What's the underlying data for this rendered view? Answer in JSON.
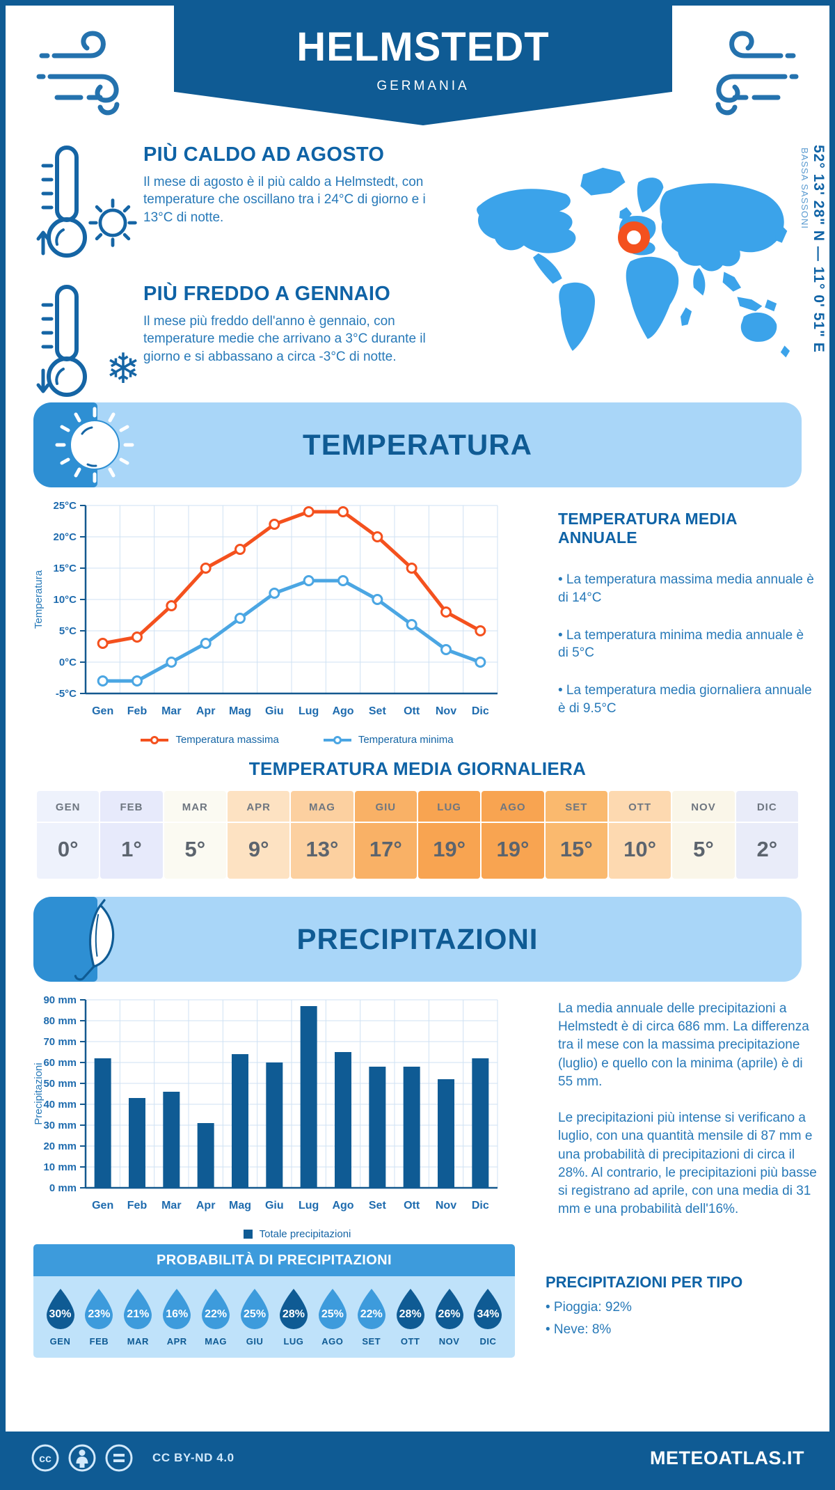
{
  "header": {
    "title": "HELMSTEDT",
    "subtitle": "GERMANIA"
  },
  "location": {
    "coordinates": "52° 13' 28\" N — 11° 0' 51\" E",
    "region": "BASSA SASSONI"
  },
  "intro": {
    "warm": {
      "title": "PIÙ CALDO AD AGOSTO",
      "text": "Il mese di agosto è il più caldo a Helmstedt, con temperature che oscillano tra i 24°C di giorno e i 13°C di notte."
    },
    "cold": {
      "title": "PIÙ FREDDO A GENNAIO",
      "text": "Il mese più freddo dell'anno è gennaio, con temperature medie che arrivano a 3°C durante il giorno e si abbassano a circa -3°C di notte."
    }
  },
  "temperature": {
    "section_title": "TEMPERATURA",
    "annual_title": "TEMPERATURA MEDIA ANNUALE",
    "annual_bullets": [
      "• La temperatura massima media annuale è di 14°C",
      "• La temperatura minima media annuale è di 5°C",
      "• La temperatura media giornaliera annuale è di 9.5°C"
    ],
    "daily_title": "TEMPERATURA MEDIA GIORNALIERA",
    "monthly_table": [
      {
        "month": "GEN",
        "value": "0°",
        "bg": "#EEF2FC"
      },
      {
        "month": "FEB",
        "value": "1°",
        "bg": "#E7EAFB"
      },
      {
        "month": "MAR",
        "value": "5°",
        "bg": "#FBFAF2"
      },
      {
        "month": "APR",
        "value": "9°",
        "bg": "#FDE2C2"
      },
      {
        "month": "MAG",
        "value": "13°",
        "bg": "#FCD0A0"
      },
      {
        "month": "GIU",
        "value": "17°",
        "bg": "#F9B166"
      },
      {
        "month": "LUG",
        "value": "19°",
        "bg": "#F8A451"
      },
      {
        "month": "AGO",
        "value": "19°",
        "bg": "#F8A451"
      },
      {
        "month": "SET",
        "value": "15°",
        "bg": "#FAB96E"
      },
      {
        "month": "OTT",
        "value": "10°",
        "bg": "#FDD9B0"
      },
      {
        "month": "NOV",
        "value": "5°",
        "bg": "#FAF6E9"
      },
      {
        "month": "DIC",
        "value": "2°",
        "bg": "#E9ECF9"
      }
    ]
  },
  "precipitation": {
    "section_title": "PRECIPITAZIONI",
    "paragraph1": "La media annuale delle precipitazioni a Helmstedt è di circa 686 mm. La differenza tra il mese con la massima precipitazione (luglio) e quello con la minima (aprile) è di 55 mm.",
    "paragraph2": "Le precipitazioni più intense si verificano a luglio, con una quantità mensile di 87 mm e una probabilità di precipitazioni di circa il 28%. Al contrario, le precipitazioni più basse si registrano ad aprile, con una media di 31 mm e una probabilità dell'16%.",
    "probability_title": "PROBABILITÀ DI PRECIPITAZIONI",
    "probability": [
      {
        "month": "GEN",
        "value": 30,
        "label": "30%"
      },
      {
        "month": "FEB",
        "value": 23,
        "label": "23%"
      },
      {
        "month": "MAR",
        "value": 21,
        "label": "21%"
      },
      {
        "month": "APR",
        "value": 16,
        "label": "16%"
      },
      {
        "month": "MAG",
        "value": 22,
        "label": "22%"
      },
      {
        "month": "GIU",
        "value": 25,
        "label": "25%"
      },
      {
        "month": "LUG",
        "value": 28,
        "label": "28%"
      },
      {
        "month": "AGO",
        "value": 25,
        "label": "25%"
      },
      {
        "month": "SET",
        "value": 22,
        "label": "22%"
      },
      {
        "month": "OTT",
        "value": 28,
        "label": "28%"
      },
      {
        "month": "NOV",
        "value": 26,
        "label": "26%"
      },
      {
        "month": "DIC",
        "value": 34,
        "label": "34%"
      }
    ],
    "type_title": "PRECIPITAZIONI PER TIPO",
    "type_bullets": [
      "• Pioggia: 92%",
      "• Neve: 8%"
    ]
  },
  "chart_data": [
    {
      "type": "line",
      "title": "Temperatura massima e minima mensile",
      "x": [
        "Gen",
        "Feb",
        "Mar",
        "Apr",
        "Mag",
        "Giu",
        "Lug",
        "Ago",
        "Set",
        "Ott",
        "Nov",
        "Dic"
      ],
      "series": [
        {
          "name": "Temperatura massima",
          "color": "#F4511E",
          "values": [
            3,
            4,
            9,
            15,
            18,
            22,
            24,
            24,
            20,
            15,
            8,
            5
          ]
        },
        {
          "name": "Temperatura minima",
          "color": "#4BA6E3",
          "values": [
            -3,
            -3,
            0,
            3,
            7,
            11,
            13,
            13,
            10,
            6,
            2,
            0
          ]
        }
      ],
      "xlabel": "",
      "ylabel": "Temperatura",
      "ylim": [
        -5,
        25
      ],
      "ystep": 5,
      "yunit": "°C",
      "grid": true,
      "legend_position": "bottom"
    },
    {
      "type": "bar",
      "title": "Totale precipitazioni mensili",
      "x": [
        "Gen",
        "Feb",
        "Mar",
        "Apr",
        "Mag",
        "Giu",
        "Lug",
        "Ago",
        "Set",
        "Ott",
        "Nov",
        "Dic"
      ],
      "series": [
        {
          "name": "Totale precipitazioni",
          "color": "#0F5B94",
          "values": [
            62,
            43,
            46,
            31,
            64,
            60,
            87,
            65,
            58,
            58,
            52,
            62
          ]
        }
      ],
      "xlabel": "",
      "ylabel": "Precipitazioni",
      "ylim": [
        0,
        90
      ],
      "ystep": 10,
      "yunit": " mm",
      "grid": true,
      "legend_position": "bottom"
    }
  ],
  "footer": {
    "license": "CC BY-ND 4.0",
    "brand": "METEOATLAS.IT"
  },
  "colors": {
    "primary": "#0F5B94",
    "accent_orange": "#F4511E",
    "banner_light": "#A9D6F8",
    "banner_cap": "#2E8FD3",
    "map_blue": "#3BA3EA",
    "drop_dark": "#0F5B94",
    "drop_medium": "#3D9BDC",
    "grid": "#CFE2F3",
    "axis": "#14598F",
    "tick_text": "#1E6BAE"
  }
}
